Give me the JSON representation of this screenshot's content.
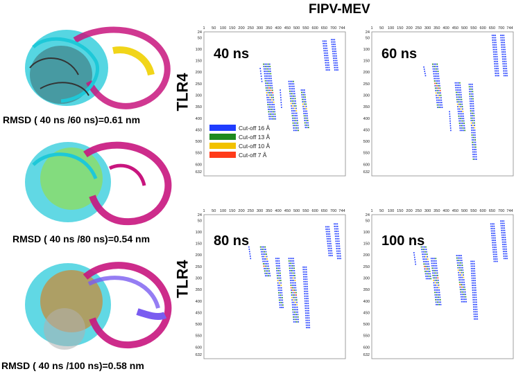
{
  "title": "FIPV-MEV",
  "receptor_label": "TLR4",
  "rmsd_labels": [
    "RMSD ( 40 ns /60 ns)=0.61 nm",
    "RMSD ( 40 ns /80 ns)=0.54 nm",
    "RMSD ( 40 ns /100 ns)=0.58 nm"
  ],
  "x_ticks": [
    "1",
    "50",
    "100",
    "150",
    "200",
    "250",
    "300",
    "350",
    "400",
    "450",
    "500",
    "550",
    "600",
    "650",
    "700",
    "744"
  ],
  "y_ticks": [
    "24",
    "50",
    "100",
    "150",
    "200",
    "250",
    "300",
    "350",
    "400",
    "450",
    "500",
    "550",
    "600",
    "632"
  ],
  "panels": [
    {
      "label": "40 ns"
    },
    {
      "label": "60 ns"
    },
    {
      "label": "80 ns"
    },
    {
      "label": "100 ns"
    }
  ],
  "legend": [
    {
      "label": "Cut-off 16 Å",
      "color": "#1f3cff"
    },
    {
      "label": "Cut-off 13 Å",
      "color": "#1e8a1e"
    },
    {
      "label": "Cut-off 10 Å",
      "color": "#f2c200"
    },
    {
      "label": "Cut-off 7 Å",
      "color": "#ff3b1a"
    }
  ],
  "protein_colors": {
    "cyan": "#1ec8d8",
    "magenta": "#c8157e",
    "yellow": "#f0d000",
    "green": "#9adf3a",
    "orange": "#e07a10",
    "purple": "#7a5cf0",
    "grey": "#3a3a3a"
  }
}
